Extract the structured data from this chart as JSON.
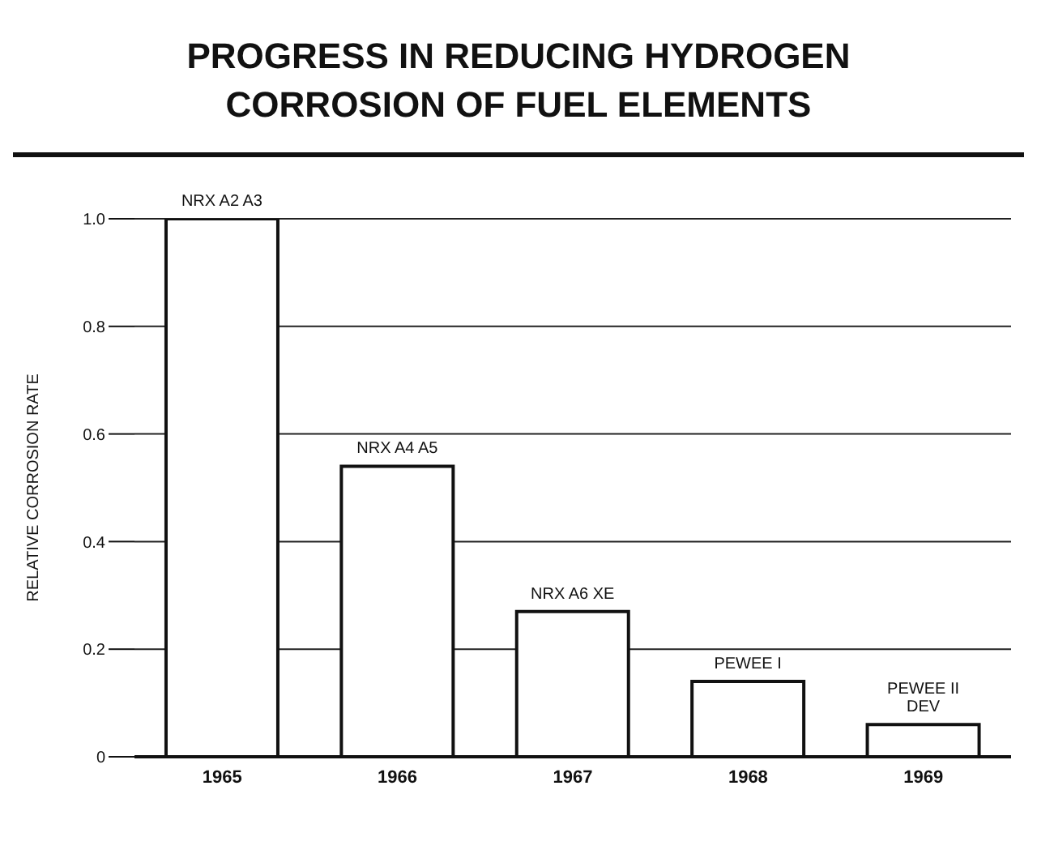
{
  "chart_data": {
    "type": "bar",
    "title": "PROGRESS IN REDUCING HYDROGEN CORROSION OF FUEL ELEMENTS",
    "ylabel": "RELATIVE CORROSION RATE",
    "categories": [
      "1965",
      "1966",
      "1967",
      "1968",
      "1969"
    ],
    "values": [
      1.0,
      0.54,
      0.27,
      0.14,
      0.06
    ],
    "color": "#ffffff",
    "ylim": [
      0,
      1
    ],
    "yticks": [
      0,
      {
        "value": 0.2,
        "label": "0.2"
      },
      {
        "value": 0.4,
        "label": "0.4"
      },
      {
        "value": 0.6,
        "label": "0.6"
      },
      {
        "value": 0.8,
        "label": "0.8"
      },
      {
        "value": 1,
        "label": "1.0"
      }
    ],
    "grid": "y",
    "annotations": [
      {
        "text": "NRX A2 A3",
        "x": "1965",
        "y": 1.0
      },
      {
        "text": "NRX A4 A5",
        "x": "1966",
        "y": 0.54
      },
      {
        "text": "NRX A6 XE",
        "x": "1967",
        "y": 0.27
      },
      {
        "text": "PEWEE I",
        "x": "1968",
        "y": 0.14
      },
      {
        "text": "PEWEE II DEV",
        "x": "1969",
        "y": 0.06
      }
    ]
  }
}
